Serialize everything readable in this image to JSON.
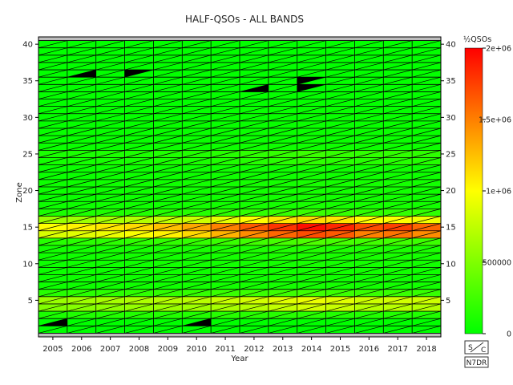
{
  "chart_data": {
    "type": "heatmap",
    "title": "HALF-QSOs - ALL BANDS",
    "xlabel": "Year",
    "ylabel": "Zone",
    "x_categories": [
      "2005",
      "2006",
      "2007",
      "2008",
      "2009",
      "2010",
      "2011",
      "2012",
      "2013",
      "2014",
      "2015",
      "2016",
      "2017",
      "2018"
    ],
    "ylim": [
      0,
      41
    ],
    "y_ticks": [
      5,
      10,
      15,
      20,
      25,
      30,
      35,
      40
    ],
    "colorbar": {
      "label": "½QSOs",
      "range": [
        0,
        2000000
      ],
      "ticks": [
        {
          "value": 0,
          "label": "0"
        },
        {
          "value": 500000,
          "label": "500000"
        },
        {
          "value": 1000000,
          "label": "1e+06"
        },
        {
          "value": 1500000,
          "label": "1.5e+06"
        },
        {
          "value": 2000000,
          "label": "2e+06"
        }
      ],
      "colors": [
        "#00ff00",
        "#ffff00",
        "#ff0000"
      ]
    },
    "series": [
      {
        "zone": 1,
        "values": [
          0,
          0,
          0,
          0,
          0,
          0,
          0,
          0,
          0,
          0,
          0,
          0,
          0,
          0
        ]
      },
      {
        "zone": 2,
        "values": [
          0,
          0,
          0,
          0,
          0,
          0,
          0,
          0,
          0,
          0,
          0,
          0,
          0,
          0
        ]
      },
      {
        "zone": 3,
        "values": [
          100000,
          120000,
          130000,
          130000,
          130000,
          130000,
          150000,
          150000,
          150000,
          150000,
          130000,
          130000,
          130000,
          120000
        ]
      },
      {
        "zone": 4,
        "values": [
          500000,
          520000,
          550000,
          580000,
          600000,
          620000,
          650000,
          700000,
          760000,
          820000,
          780000,
          700000,
          720000,
          700000
        ]
      },
      {
        "zone": 5,
        "values": [
          600000,
          620000,
          650000,
          680000,
          700000,
          720000,
          780000,
          820000,
          880000,
          920000,
          880000,
          800000,
          820000,
          800000
        ]
      },
      {
        "zone": 6,
        "values": [
          150000,
          160000,
          170000,
          180000,
          190000,
          200000,
          220000,
          230000,
          240000,
          250000,
          230000,
          220000,
          220000,
          210000
        ]
      },
      {
        "zone": 7,
        "values": [
          50000,
          50000,
          60000,
          60000,
          60000,
          70000,
          70000,
          80000,
          80000,
          80000,
          80000,
          70000,
          70000,
          70000
        ]
      },
      {
        "zone": 8,
        "values": [
          50000,
          50000,
          50000,
          50000,
          60000,
          60000,
          60000,
          60000,
          70000,
          70000,
          60000,
          60000,
          60000,
          60000
        ]
      },
      {
        "zone": 9,
        "values": [
          50000,
          50000,
          50000,
          60000,
          60000,
          60000,
          70000,
          70000,
          70000,
          80000,
          70000,
          70000,
          70000,
          60000
        ]
      },
      {
        "zone": 10,
        "values": [
          50000,
          60000,
          60000,
          60000,
          70000,
          70000,
          70000,
          80000,
          80000,
          90000,
          80000,
          80000,
          80000,
          70000
        ]
      },
      {
        "zone": 11,
        "values": [
          60000,
          60000,
          70000,
          70000,
          70000,
          80000,
          80000,
          90000,
          100000,
          100000,
          90000,
          90000,
          90000,
          80000
        ]
      },
      {
        "zone": 12,
        "values": [
          70000,
          70000,
          80000,
          80000,
          90000,
          90000,
          100000,
          110000,
          120000,
          130000,
          110000,
          110000,
          100000,
          100000
        ]
      },
      {
        "zone": 13,
        "values": [
          150000,
          160000,
          170000,
          180000,
          190000,
          200000,
          220000,
          250000,
          270000,
          300000,
          270000,
          250000,
          250000,
          230000
        ]
      },
      {
        "zone": 14,
        "values": [
          850000,
          880000,
          920000,
          980000,
          1050000,
          1150000,
          1300000,
          1450000,
          1600000,
          1700000,
          1650000,
          1500000,
          1550000,
          1450000
        ]
      },
      {
        "zone": 15,
        "values": [
          1000000,
          1050000,
          1100000,
          1150000,
          1250000,
          1350000,
          1500000,
          1650000,
          1800000,
          1950000,
          1850000,
          1700000,
          1750000,
          1600000
        ]
      },
      {
        "zone": 16,
        "values": [
          600000,
          620000,
          650000,
          700000,
          750000,
          800000,
          900000,
          1000000,
          1100000,
          1150000,
          1100000,
          1000000,
          1000000,
          950000
        ]
      },
      {
        "zone": 17,
        "values": [
          100000,
          110000,
          120000,
          130000,
          140000,
          150000,
          170000,
          190000,
          210000,
          230000,
          210000,
          200000,
          200000,
          190000
        ]
      },
      {
        "zone": 18,
        "values": [
          50000,
          50000,
          60000,
          60000,
          60000,
          70000,
          70000,
          80000,
          80000,
          90000,
          80000,
          80000,
          80000,
          70000
        ]
      },
      {
        "zone": 19,
        "values": [
          40000,
          40000,
          50000,
          50000,
          50000,
          60000,
          60000,
          70000,
          70000,
          80000,
          70000,
          70000,
          70000,
          60000
        ]
      },
      {
        "zone": 20,
        "values": [
          50000,
          50000,
          50000,
          60000,
          60000,
          60000,
          70000,
          70000,
          80000,
          80000,
          70000,
          70000,
          70000,
          60000
        ]
      },
      {
        "zone": 21,
        "values": [
          50000,
          50000,
          60000,
          60000,
          60000,
          70000,
          70000,
          80000,
          80000,
          90000,
          80000,
          80000,
          80000,
          70000
        ]
      },
      {
        "zone": 22,
        "values": [
          40000,
          40000,
          50000,
          50000,
          50000,
          50000,
          60000,
          60000,
          60000,
          70000,
          60000,
          60000,
          60000,
          50000
        ]
      },
      {
        "zone": 23,
        "values": [
          40000,
          40000,
          50000,
          50000,
          50000,
          50000,
          60000,
          60000,
          60000,
          70000,
          60000,
          60000,
          60000,
          50000
        ]
      },
      {
        "zone": 24,
        "values": [
          80000,
          80000,
          90000,
          90000,
          100000,
          100000,
          120000,
          140000,
          160000,
          180000,
          160000,
          150000,
          150000,
          140000
        ]
      },
      {
        "zone": 25,
        "values": [
          100000,
          100000,
          110000,
          110000,
          120000,
          130000,
          150000,
          180000,
          200000,
          230000,
          200000,
          190000,
          190000,
          180000
        ]
      },
      {
        "zone": 26,
        "values": [
          40000,
          40000,
          40000,
          40000,
          50000,
          50000,
          50000,
          60000,
          60000,
          60000,
          60000,
          50000,
          50000,
          50000
        ]
      },
      {
        "zone": 27,
        "values": [
          30000,
          30000,
          30000,
          30000,
          30000,
          40000,
          40000,
          40000,
          40000,
          50000,
          40000,
          40000,
          40000,
          40000
        ]
      },
      {
        "zone": 28,
        "values": [
          30000,
          30000,
          30000,
          30000,
          30000,
          30000,
          40000,
          40000,
          40000,
          40000,
          40000,
          40000,
          40000,
          30000
        ]
      },
      {
        "zone": 29,
        "values": [
          20000,
          20000,
          20000,
          20000,
          30000,
          30000,
          30000,
          30000,
          30000,
          40000,
          30000,
          30000,
          30000,
          30000
        ]
      },
      {
        "zone": 30,
        "values": [
          20000,
          20000,
          20000,
          20000,
          20000,
          20000,
          30000,
          30000,
          30000,
          30000,
          30000,
          30000,
          30000,
          20000
        ]
      },
      {
        "zone": 31,
        "values": [
          20000,
          20000,
          20000,
          20000,
          20000,
          20000,
          20000,
          30000,
          30000,
          30000,
          30000,
          20000,
          20000,
          20000
        ]
      },
      {
        "zone": 32,
        "values": [
          10000,
          10000,
          10000,
          10000,
          10000,
          10000,
          10000,
          10000,
          20000,
          20000,
          20000,
          10000,
          10000,
          10000
        ]
      },
      {
        "zone": 33,
        "values": [
          20000,
          20000,
          20000,
          20000,
          20000,
          20000,
          20000,
          20000,
          20000,
          20000,
          20000,
          20000,
          20000,
          20000
        ]
      },
      {
        "zone": 34,
        "values": [
          10000,
          10000,
          10000,
          10000,
          10000,
          10000,
          10000,
          0,
          10000,
          0,
          10000,
          10000,
          10000,
          10000
        ]
      },
      {
        "zone": 35,
        "values": [
          20000,
          20000,
          20000,
          20000,
          20000,
          20000,
          20000,
          20000,
          20000,
          20000,
          20000,
          20000,
          20000,
          20000
        ]
      },
      {
        "zone": 36,
        "values": [
          10000,
          0,
          10000,
          0,
          10000,
          10000,
          10000,
          10000,
          10000,
          10000,
          10000,
          10000,
          10000,
          10000
        ]
      },
      {
        "zone": 37,
        "values": [
          10000,
          10000,
          10000,
          10000,
          10000,
          10000,
          10000,
          10000,
          10000,
          10000,
          10000,
          10000,
          10000,
          10000
        ]
      },
      {
        "zone": 38,
        "values": [
          10000,
          10000,
          10000,
          10000,
          10000,
          10000,
          10000,
          10000,
          10000,
          10000,
          10000,
          10000,
          10000,
          10000
        ]
      },
      {
        "zone": 39,
        "values": [
          10000,
          10000,
          10000,
          10000,
          10000,
          10000,
          10000,
          10000,
          10000,
          10000,
          10000,
          10000,
          10000,
          10000
        ]
      },
      {
        "zone": 40,
        "values": [
          10000,
          10000,
          10000,
          10000,
          10000,
          10000,
          10000,
          10000,
          10000,
          10000,
          10000,
          10000,
          10000,
          10000
        ]
      }
    ],
    "no_data_triangles": [
      {
        "year": "2005",
        "zone": 2,
        "half": "lower"
      },
      {
        "year": "2006",
        "zone": 36,
        "half": "lower"
      },
      {
        "year": "2008",
        "zone": 36,
        "half": "upper"
      },
      {
        "year": "2010",
        "zone": 2,
        "half": "lower"
      },
      {
        "year": "2012",
        "zone": 34,
        "half": "lower"
      },
      {
        "year": "2014",
        "zone": 35,
        "half": "upper"
      },
      {
        "year": "2014",
        "zone": 34,
        "half": "upper"
      }
    ],
    "grid": true
  },
  "badges": {
    "logo_left": "S",
    "logo_right": "C",
    "callsign": "N7DR"
  }
}
